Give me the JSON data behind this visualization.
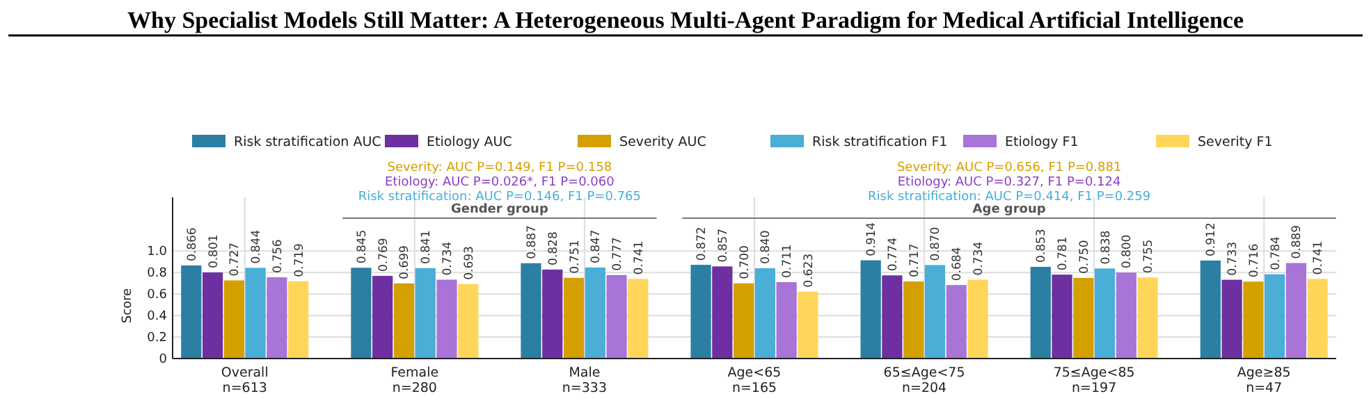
{
  "chart_data": {
    "type": "bar",
    "title": "Why Specialist Models Still Matter: A Heterogeneous Multi-Agent Paradigm for Medical Artificial Intelligence",
    "ylabel": "Score",
    "categories": [
      "Overall\nn=613",
      "Female\nn=280",
      "Male\nn=333",
      "Age<65\nn=165",
      "65≤Age<75\nn=204",
      "75≤Age<85\nn=197",
      "Age≥85\nn=47"
    ],
    "series": [
      {
        "name": "Risk stratification AUC",
        "color": "#2a7fa3",
        "values": [
          0.866,
          0.845,
          0.887,
          0.872,
          0.914,
          0.853,
          0.912
        ]
      },
      {
        "name": "Etiology AUC",
        "color": "#6e2fa0",
        "values": [
          0.801,
          0.769,
          0.828,
          0.857,
          0.774,
          0.781,
          0.733
        ]
      },
      {
        "name": "Severity AUC",
        "color": "#d4a000",
        "values": [
          0.727,
          0.699,
          0.751,
          0.7,
          0.717,
          0.75,
          0.716
        ],
        "value_labels": [
          "0.727",
          "0.699",
          "0.751",
          "0.700",
          "0.717",
          "0.750",
          "0.716"
        ]
      },
      {
        "name": "Risk stratification F1",
        "color": "#4aaed6",
        "values": [
          0.844,
          0.841,
          0.847,
          0.84,
          0.87,
          0.838,
          0.784
        ],
        "value_labels": [
          "0.844",
          "0.841",
          "0.847",
          "0.840",
          "0.870",
          "0.838",
          "0.784"
        ]
      },
      {
        "name": "Etiology F1",
        "color": "#a874d8",
        "values": [
          0.756,
          0.734,
          0.777,
          0.711,
          0.684,
          0.8,
          0.889
        ],
        "value_labels": [
          "0.756",
          "0.734",
          "0.777",
          "0.711",
          "0.684",
          "0.800",
          "0.889"
        ]
      },
      {
        "name": "Severity F1",
        "color": "#ffd65a",
        "values": [
          0.719,
          0.693,
          0.741,
          0.623,
          0.734,
          0.755,
          0.741
        ]
      }
    ],
    "annotations": [
      "Severity:  AUC P=0.149,  F1 P=0.158",
      "Etiology:  AUC P=0.026*,  F1 P=0.060",
      "Risk stratification:  AUC P=0.146,  F1 P=0.765",
      "Gender group",
      "Severity:  AUC P=0.656,  F1 P=0.881",
      "Etiology:  AUC P=0.327,  F1 P=0.124",
      "Risk stratification:  AUC P=0.414,  F1 P=0.259",
      "Age group"
    ],
    "ylim": [
      0,
      1.5
    ],
    "yticks": [
      0.0,
      {
        "value": 0.2,
        "label": "0.2"
      },
      {
        "value": 0.4,
        "label": "0.4"
      },
      {
        "value": 0.6,
        "label": "0.6"
      },
      {
        "value": 0.8,
        "label": "0.8"
      },
      {
        "value": 1.0,
        "label": "1.0"
      }
    ],
    "grid": true,
    "legend": "top",
    "data_labels": true
  }
}
